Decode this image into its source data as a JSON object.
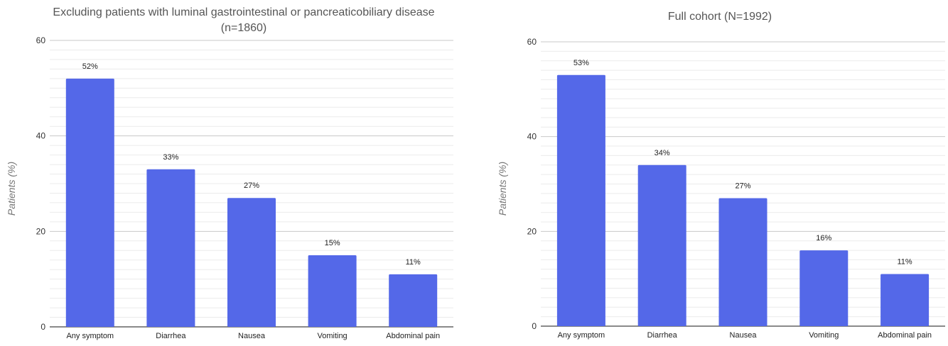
{
  "chart_data": [
    {
      "type": "bar",
      "title": "Excluding patients with luminal gastrointestinal or pancreaticobiliary disease",
      "subtitle": "(n=1860)",
      "xlabel": "",
      "ylabel": "Patients (%)",
      "categories": [
        "Any symptom",
        "Diarrhea",
        "Nausea",
        "Vomiting",
        "Abdominal pain"
      ],
      "values": [
        52,
        33,
        27,
        15,
        11
      ],
      "data_labels": [
        "52%",
        "33%",
        "27%",
        "15%",
        "11%"
      ],
      "ylim": [
        0,
        60
      ],
      "yticks": [
        0,
        20,
        40,
        60
      ],
      "ytick_labels": [
        "0",
        "20",
        "40",
        "60"
      ],
      "minor_gridlines_step": 2,
      "grid": true,
      "bar_color": "#5468E8"
    },
    {
      "type": "bar",
      "title": "Full cohort (N=1992)",
      "subtitle": "",
      "xlabel": "",
      "ylabel": "Patients (%)",
      "categories": [
        "Any symptom",
        "Diarrhea",
        "Nausea",
        "Vomiting",
        "Abdominal pain"
      ],
      "values": [
        53,
        34,
        27,
        16,
        11
      ],
      "data_labels": [
        "53%",
        "34%",
        "27%",
        "16%",
        "11%"
      ],
      "ylim": [
        0,
        60
      ],
      "yticks": [
        0,
        20,
        40,
        60
      ],
      "ytick_labels": [
        "0",
        "20",
        "40",
        "60"
      ],
      "minor_gridlines_step": 2,
      "grid": true,
      "bar_color": "#5468E8"
    }
  ]
}
